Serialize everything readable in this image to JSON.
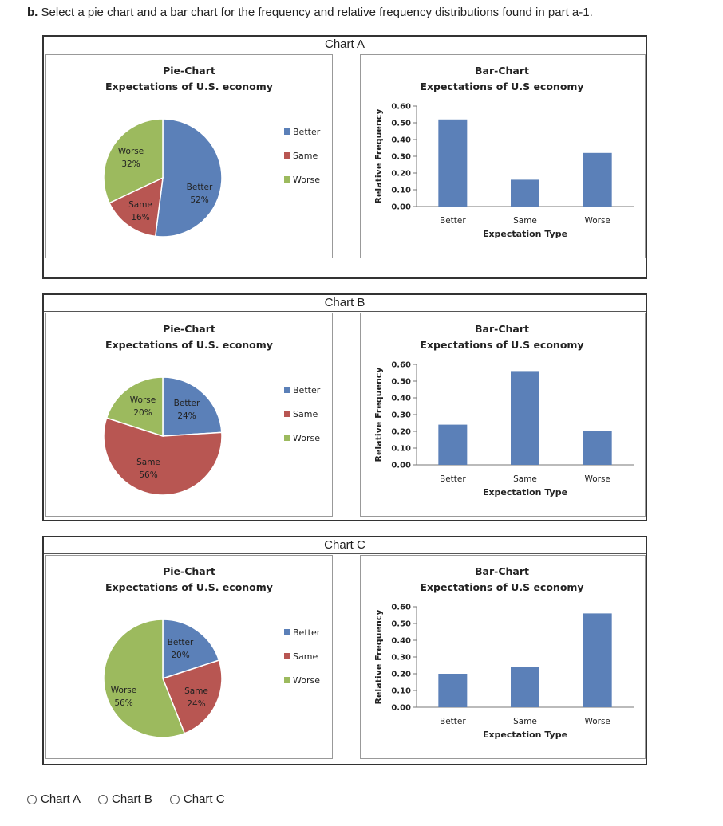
{
  "question": {
    "label": "b.",
    "text": "Select a pie chart and a bar chart for the frequency and relative frequency distributions found in part a-1."
  },
  "colors": {
    "Better": "#5B80B8",
    "Same": "#B85652",
    "Worse": "#9CBA5E"
  },
  "options": [
    "Chart A",
    "Chart B",
    "Chart C"
  ],
  "chart_data": [
    {
      "id": "chart-a",
      "title": "Chart A",
      "pie": {
        "type": "pie",
        "title": "Pie-Chart",
        "subtitle": "Expectations of U.S. economy",
        "slices": [
          {
            "label": "Better",
            "pct": "52%",
            "value": 52
          },
          {
            "label": "Same",
            "pct": "16%",
            "value": 16
          },
          {
            "label": "Worse",
            "pct": "32%",
            "value": 32
          }
        ],
        "legend": [
          "Better",
          "Same",
          "Worse"
        ]
      },
      "bar": {
        "type": "bar",
        "title": "Bar-Chart",
        "subtitle": "Expectations of U.S economy",
        "categories": [
          "Better",
          "Same",
          "Worse"
        ],
        "values": [
          0.52,
          0.16,
          0.32
        ],
        "xlabel": "Expectation Type",
        "ylabel": "Relative Frequency",
        "ylim": [
          0,
          0.6
        ],
        "yticks": [
          "0.00",
          "0.10",
          "0.20",
          "0.30",
          "0.40",
          "0.50",
          "0.60"
        ]
      }
    },
    {
      "id": "chart-b",
      "title": "Chart B",
      "pie": {
        "type": "pie",
        "title": "Pie-Chart",
        "subtitle": "Expectations of U.S. economy",
        "slices": [
          {
            "label": "Better",
            "pct": "24%",
            "value": 24
          },
          {
            "label": "Same",
            "pct": "56%",
            "value": 56
          },
          {
            "label": "Worse",
            "pct": "20%",
            "value": 20
          }
        ],
        "legend": [
          "Better",
          "Same",
          "Worse"
        ]
      },
      "bar": {
        "type": "bar",
        "title": "Bar-Chart",
        "subtitle": "Expectations of U.S economy",
        "categories": [
          "Better",
          "Same",
          "Worse"
        ],
        "values": [
          0.24,
          0.56,
          0.2
        ],
        "xlabel": "Expectation Type",
        "ylabel": "Relative Frequency",
        "ylim": [
          0,
          0.6
        ],
        "yticks": [
          "0.00",
          "0.10",
          "0.20",
          "0.30",
          "0.40",
          "0.50",
          "0.60"
        ]
      }
    },
    {
      "id": "chart-c",
      "title": "Chart C",
      "pie": {
        "type": "pie",
        "title": "Pie-Chart",
        "subtitle": "Expectations of U.S. economy",
        "slices": [
          {
            "label": "Better",
            "pct": "20%",
            "value": 20
          },
          {
            "label": "Same",
            "pct": "24%",
            "value": 24
          },
          {
            "label": "Worse",
            "pct": "56%",
            "value": 56
          }
        ],
        "legend": [
          "Better",
          "Same",
          "Worse"
        ]
      },
      "bar": {
        "type": "bar",
        "title": "Bar-Chart",
        "subtitle": "Expectations of U.S economy",
        "categories": [
          "Better",
          "Same",
          "Worse"
        ],
        "values": [
          0.2,
          0.24,
          0.56
        ],
        "xlabel": "Expectation Type",
        "ylabel": "Relative Frequency",
        "ylim": [
          0,
          0.6
        ],
        "yticks": [
          "0.00",
          "0.10",
          "0.20",
          "0.30",
          "0.40",
          "0.50",
          "0.60"
        ]
      }
    }
  ]
}
